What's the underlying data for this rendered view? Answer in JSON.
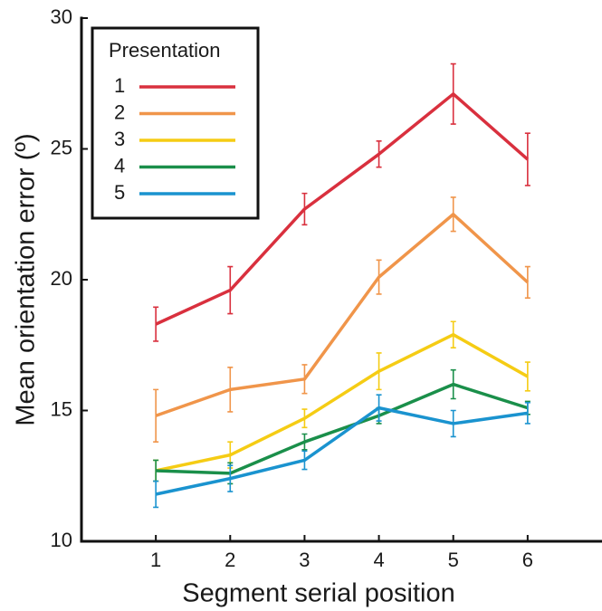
{
  "chart_data": {
    "type": "line",
    "xlabel": "Segment serial position",
    "ylabel": "Mean orientation error (º)",
    "x": [
      1,
      2,
      3,
      4,
      5,
      6
    ],
    "xlim": [
      0,
      7
    ],
    "xticks": [
      1,
      2,
      3,
      4,
      5,
      6
    ],
    "ylim": [
      10,
      30
    ],
    "yticks": [
      10,
      15,
      20,
      25,
      30
    ],
    "legend_title": "Presentation",
    "legend_position": "upper left",
    "series": [
      {
        "name": "1",
        "color": "#d9303e",
        "values": [
          18.3,
          19.6,
          22.7,
          24.8,
          27.1,
          24.6
        ],
        "errors": [
          0.65,
          0.9,
          0.6,
          0.5,
          1.15,
          1.0
        ]
      },
      {
        "name": "2",
        "color": "#f0954a",
        "values": [
          14.8,
          15.8,
          16.2,
          20.1,
          22.5,
          19.9
        ],
        "errors": [
          1.0,
          0.85,
          0.55,
          0.65,
          0.65,
          0.6
        ]
      },
      {
        "name": "3",
        "color": "#f5cc14",
        "values": [
          12.7,
          13.3,
          14.7,
          16.5,
          17.9,
          16.3
        ],
        "errors": [
          0.4,
          0.5,
          0.35,
          0.7,
          0.5,
          0.55
        ]
      },
      {
        "name": "4",
        "color": "#1a8f4a",
        "values": [
          12.7,
          12.6,
          13.8,
          14.8,
          16.0,
          15.1
        ],
        "errors": [
          0.4,
          0.4,
          0.3,
          0.3,
          0.55,
          0.25
        ]
      },
      {
        "name": "5",
        "color": "#1a93cf",
        "values": [
          11.8,
          12.4,
          13.1,
          15.1,
          14.5,
          14.9
        ],
        "errors": [
          0.5,
          0.5,
          0.35,
          0.5,
          0.5,
          0.4
        ]
      }
    ]
  }
}
